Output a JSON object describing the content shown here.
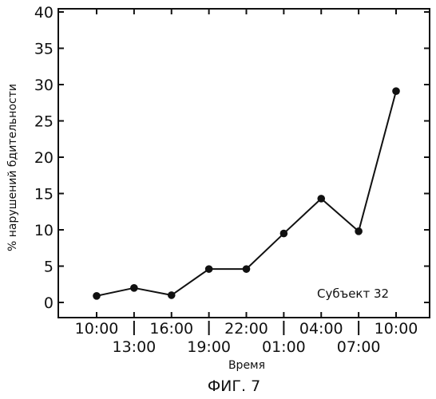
{
  "chart_data": {
    "type": "line",
    "xlabel": "Время",
    "ylabel": "% нарушений бдительности",
    "annotation": "Субъект 32",
    "caption": "ФИГ. 7",
    "x_ticks": [
      "10:00",
      "13:00",
      "16:00",
      "19:00",
      "22:00",
      "01:00",
      "04:00",
      "07:00",
      "10:00"
    ],
    "y_ticks": [
      "0",
      "5",
      "10",
      "15",
      "20",
      "25",
      "30",
      "35",
      "40"
    ],
    "ylim": [
      0,
      40
    ],
    "grid": false,
    "series": [
      {
        "x": [
          "10:00",
          "13:00",
          "16:00",
          "19:00",
          "22:00",
          "01:00",
          "04:00",
          "07:00",
          "10:00"
        ],
        "values": [
          0.9,
          2.0,
          1.0,
          4.6,
          4.6,
          9.5,
          14.3,
          9.8,
          29.1
        ]
      }
    ],
    "colors": {
      "ink": "#111111"
    }
  }
}
